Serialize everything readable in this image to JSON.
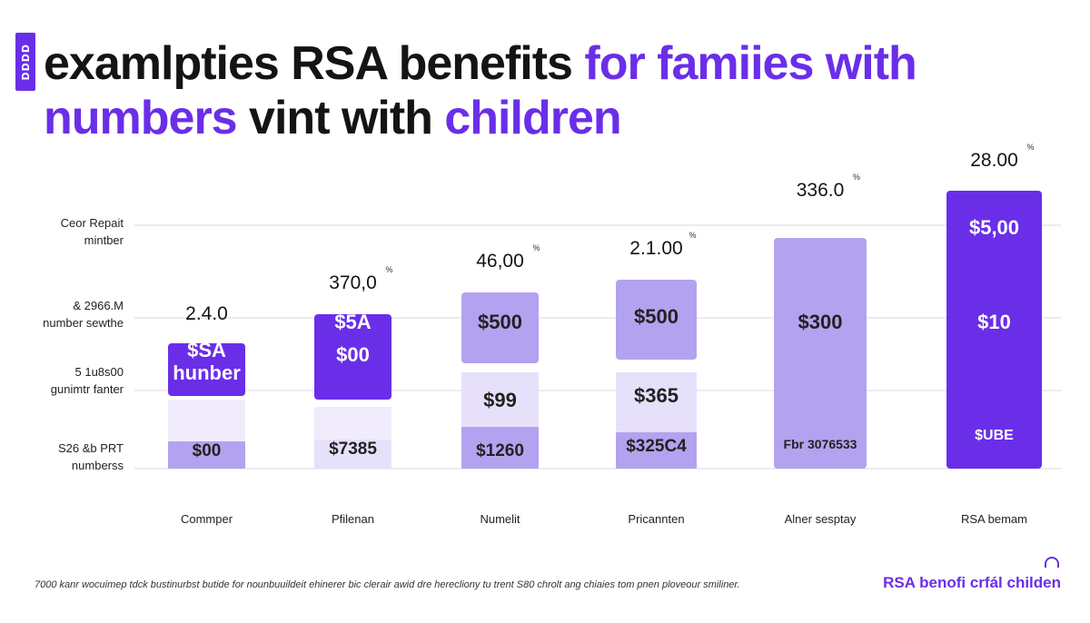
{
  "header": {
    "logo_text": "DDDD",
    "title_part1": "examlpties RSA benefits ",
    "title_part2": "for famiies with",
    "title_part3": "numbers",
    "title_part4": " vint with ",
    "title_part5": "children"
  },
  "ylabels": [
    {
      "line1": "Ceor Repait",
      "line2": "mintber"
    },
    {
      "line1": "& 2966.M",
      "line2": "number sewthe"
    },
    {
      "line1": "5 1u8s00",
      "line2": "gunimtr fanter"
    },
    {
      "line1": "S26 &b PRT",
      "line2": "numberss"
    }
  ],
  "chart_data": {
    "type": "bar",
    "stacked": true,
    "categories": [
      "Commper",
      "Pfilenan",
      "Numelit",
      "Pricannten",
      "Alner sesptay",
      "RSA bemam"
    ],
    "top_labels": [
      "2.4.0",
      "370,0",
      "46,00",
      "2.1.00",
      "336.0",
      "28.00"
    ],
    "top_superscripts": [
      "",
      "%",
      "%",
      "%",
      "%",
      "%"
    ],
    "segments": [
      {
        "labels": [
          "$00",
          "$7385",
          "$1260",
          "$325C4",
          "Fbr 3076533",
          "$UBE"
        ]
      },
      {
        "labels": [
          "",
          "",
          "$99",
          "$365",
          "",
          ""
        ]
      },
      {
        "labels": [
          "$SA\nhunber",
          "$5A\n$00",
          "$500",
          "$500",
          "$300",
          "$10"
        ]
      },
      {
        "labels": [
          "",
          "",
          "",
          "",
          "",
          "$5,00"
        ]
      }
    ],
    "gridlines": true,
    "colors": {
      "dark": "#6a2ee8",
      "mid": "#b3a2ef",
      "light": "#e7e0fb",
      "faint": "#f0ecfc",
      "grid": "#d9d9e0"
    }
  },
  "footer": {
    "footnote": "7000 kanr wocuimep tdck bustinurbst butide for nounbuuildeit ehinerer bic clerair awid dre herecliony tu trent S80 chrolt ang chiaies tom pnen ploveour smiliner.",
    "brand": "RSA benofi crfál childen"
  }
}
